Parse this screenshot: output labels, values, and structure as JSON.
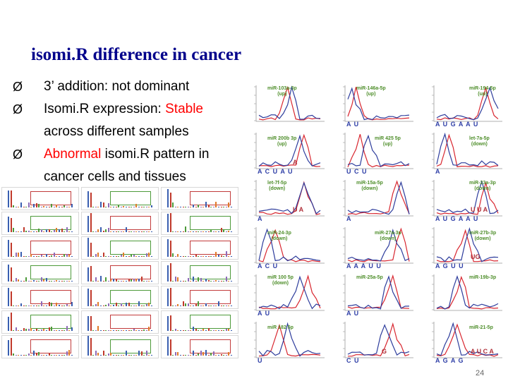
{
  "slide": {
    "title": "isomi.R difference in cancer",
    "page_number": "24"
  },
  "bullets": [
    {
      "marker": "Ø",
      "parts": [
        "3’ addition: not dominant"
      ]
    },
    {
      "marker": "Ø",
      "parts": [
        "Isomi.R expression: ",
        "Stable"
      ],
      "continuation": "across different samples"
    },
    {
      "marker": "Ø",
      "parts": [
        "Abnormal",
        " isomi.R pattern in"
      ],
      "continuation": "cancer cells and tissues"
    }
  ],
  "colors": {
    "title": "#00008b",
    "emphasis": "#ff0000",
    "series_a": "#d8262f",
    "series_b": "#2d3c9c",
    "label": "#4e8e2a"
  },
  "line_panels": [
    {
      "label": "miR-103a-3p\n(up)",
      "notes": "",
      "extra": ""
    },
    {
      "label": "miR-146a-5p\n(up)",
      "notes": "A  U",
      "extra": ""
    },
    {
      "label": "miR-194-5p\n(up)",
      "notes": "A U   G A A U",
      "extra": ""
    },
    {
      "label": "miR 200b 3p\n(up)",
      "notes": "A C U  A U",
      "extra": "A"
    },
    {
      "label": "miR 425 5p\n(up)",
      "notes": "U   C   U",
      "extra": ""
    },
    {
      "label": "let-7a-5p\n(down)",
      "notes": "A",
      "extra": ""
    },
    {
      "label": "let-7f-5p\n(down)",
      "notes": "A",
      "extra": "U A"
    },
    {
      "label": "miR-15a-5p\n(down)",
      "notes": "A",
      "extra": ""
    },
    {
      "label": "miR-23a-3p\n(down)",
      "notes": "A  U  G A A U",
      "extra": "U U A"
    },
    {
      "label": "miR-24-3p\n(down)",
      "notes": "A C U",
      "extra": ""
    },
    {
      "label": "miR-27a-3p\n(down)",
      "notes": "A  A  A U U",
      "extra": ""
    },
    {
      "label": "miR-27b-3p\n(down)",
      "notes": "A  G   U U",
      "extra": "UG"
    },
    {
      "label": "miR 100 5p\n(down)",
      "notes": "A U",
      "extra": ""
    },
    {
      "label": "miR-25a-5p",
      "notes": "A U",
      "extra": ""
    },
    {
      "label": "miR-19b-3p",
      "notes": "",
      "extra": ""
    },
    {
      "label": "miR 182 5p",
      "notes": "U",
      "extra": ""
    },
    {
      "label": "",
      "notes": "C U",
      "extra": "G"
    },
    {
      "label": "miR-21-5p",
      "notes": "A G A G",
      "extra": "A U   C   A"
    }
  ]
}
